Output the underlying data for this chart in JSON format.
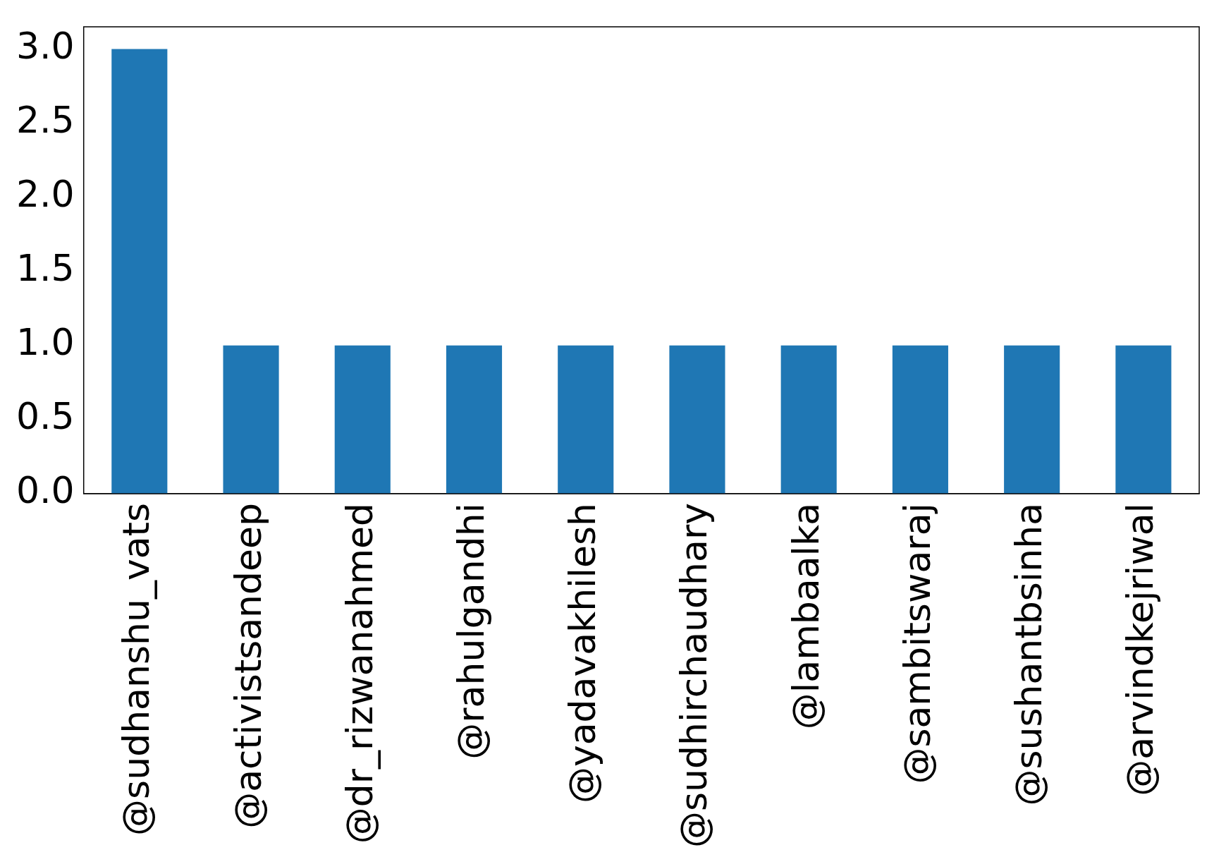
{
  "chart_data": {
    "type": "bar",
    "categories": [
      "@sudhanshu_vats",
      "@activistsandeep",
      "@dr_rizwanahmed",
      "@rahulgandhi",
      "@yadavakhilesh",
      "@sudhirchaudhary",
      "@lambaalka",
      "@sambitswaraj",
      "@sushantbsinha",
      "@arvindkejriwal"
    ],
    "values": [
      3,
      1,
      1,
      1,
      1,
      1,
      1,
      1,
      1,
      1
    ],
    "color": "#1f77b4",
    "ylim": [
      0,
      3.15
    ],
    "yticks": [
      {
        "value": 0,
        "label": "0.0"
      },
      {
        "value": 0.5,
        "label": "0.5"
      },
      {
        "value": 1,
        "label": "1.0"
      },
      {
        "value": 1.5,
        "label": "1.5"
      },
      {
        "value": 2,
        "label": "2.0"
      },
      {
        "value": 2.5,
        "label": "2.5"
      },
      {
        "value": 3,
        "label": "3.0"
      }
    ],
    "grid": false
  }
}
